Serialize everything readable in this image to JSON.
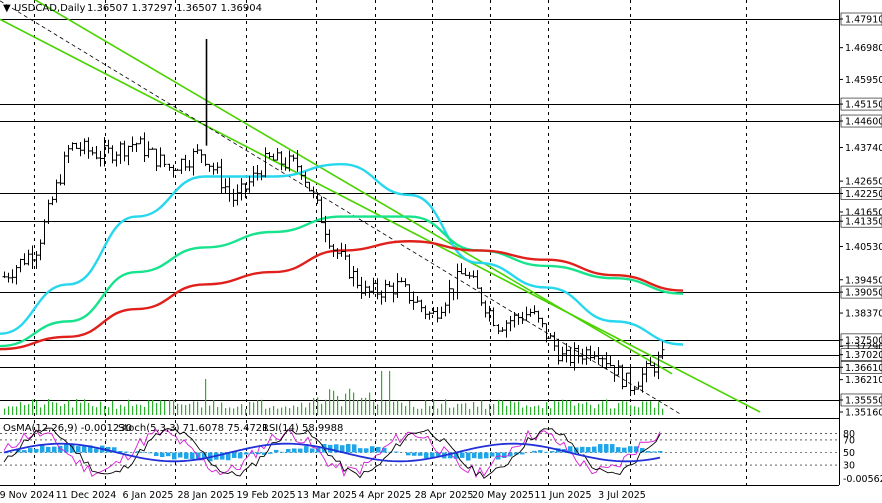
{
  "header": {
    "symbol_text": "USDCAD,Daily",
    "ohlc_text": "1.36507 1.37297 1.36507 1.36904"
  },
  "indicator_header": {
    "osma_text": "OsMA(12,26,9) -0.001230",
    "stoch_text": "Stoch(5,3,3) 71.6078 75.4721",
    "rsi_text": "RSI(14) 58.9988"
  },
  "chart_data": {
    "type": "line",
    "title": "USDCAD,Daily",
    "instrument": "USDCAD",
    "timeframe": "Daily",
    "last_bar": {
      "open": 1.36507,
      "high": 1.37297,
      "low": 1.36507,
      "close": 1.36904
    },
    "price_ticks": [
      1.4791,
      1.4698,
      1.4595,
      1.4515,
      1.446,
      1.4374,
      1.4265,
      1.4225,
      1.4165,
      1.4135,
      1.4053,
      1.3945,
      1.3905,
      1.3837,
      1.375,
      1.3729,
      1.3702,
      1.3661,
      1.3621,
      1.3555,
      1.3516
    ],
    "highlighted_levels": [
      1.4791,
      1.4515,
      1.446,
      1.4225,
      1.4135,
      1.3905,
      1.375,
      1.3702,
      1.3661,
      1.3555
    ],
    "dates": [
      "19 Nov 2024",
      "11 Dec 2024",
      "6 Jan 2025",
      "28 Jan 2025",
      "19 Feb 2025",
      "13 Mar 2025",
      "4 Apr 2025",
      "28 Apr 2025",
      "20 May 2025",
      "11 Jun 2025",
      "3 Jul 2025"
    ],
    "ylim": [
      1.3516,
      1.4791
    ],
    "series": [
      {
        "key": "ema_fast",
        "color": "#26d7ee",
        "values": [
          1.377,
          1.393,
          1.415,
          1.428,
          1.428,
          1.432,
          1.422,
          1.4,
          1.392,
          1.381,
          1.3735
        ]
      },
      {
        "key": "ema_mid",
        "color": "#16e38c",
        "values": [
          1.373,
          1.381,
          1.397,
          1.405,
          1.41,
          1.415,
          1.415,
          1.404,
          1.399,
          1.395,
          1.39
        ]
      },
      {
        "key": "ema_slow",
        "color": "#e0201b",
        "values": [
          1.372,
          1.376,
          1.385,
          1.393,
          1.397,
          1.404,
          1.407,
          1.404,
          1.401,
          1.396,
          1.391
        ]
      }
    ],
    "close_path": [
      1.3955,
      1.405,
      1.438,
      1.435,
      1.439,
      1.431,
      1.436,
      1.42,
      1.4335,
      1.4315,
      1.405,
      1.39,
      1.3925,
      1.3825,
      1.3975,
      1.38,
      1.384,
      1.3685,
      1.3725,
      1.36,
      1.369
    ],
    "channel": {
      "upper": {
        "start": 1.492,
        "end": 1.364
      },
      "lower": {
        "start": 1.479,
        "end": 1.338
      },
      "mid": {
        "start": 1.485,
        "end": 1.351
      }
    },
    "oscillator_ticks": [
      "80",
      "70",
      "50",
      "30",
      "-0.00562"
    ],
    "rsi_levels": [
      30,
      50,
      70,
      80
    ]
  },
  "style": {
    "grid_color": "#000000",
    "level_color": "#000000",
    "candle_color": "#000000",
    "channel_color": "#4ad300",
    "volume_color": "#2bb02b",
    "osma_color": "#1fa6e8",
    "stoch_main_color": "#2230d8",
    "stoch_signal_color": "#000000",
    "rsi_color": "#d81ad8"
  }
}
